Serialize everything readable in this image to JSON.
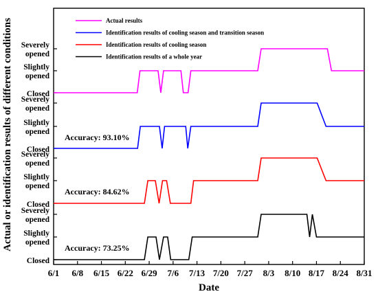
{
  "chart_data": {
    "type": "line",
    "xlabel": "Date",
    "ylabel": "Actual or identification results of different conditions",
    "x_ticks": [
      "6/1",
      "6/8",
      "6/15",
      "6/22",
      "6/29",
      "7/6",
      "7/13",
      "7/20",
      "7/27",
      "8/3",
      "8/10",
      "8/17",
      "8/24",
      "8/31"
    ],
    "x_range": [
      0,
      91
    ],
    "y_levels": [
      "Closed",
      "Slightly opened",
      "Severely opened"
    ],
    "y_level_labels": [
      {
        "line1": "Closed",
        "line2": ""
      },
      {
        "line1": "Slightly",
        "line2": "opened"
      },
      {
        "line1": "Severely",
        "line2": "opened"
      }
    ],
    "grid": false,
    "legend_position": "top-left",
    "series": [
      {
        "name": "Actual  results",
        "color": "#ff00ff",
        "accuracy": "",
        "points": [
          [
            0,
            0
          ],
          [
            24.5,
            0
          ],
          [
            25.3,
            1
          ],
          [
            30.6,
            1
          ],
          [
            31.4,
            0
          ],
          [
            32.2,
            1
          ],
          [
            37.3,
            1
          ],
          [
            38,
            0
          ],
          [
            39.4,
            0
          ],
          [
            40.2,
            1
          ],
          [
            59.8,
            1
          ],
          [
            60.8,
            2
          ],
          [
            80.2,
            2
          ],
          [
            81.4,
            1
          ],
          [
            91,
            1
          ]
        ]
      },
      {
        "name": "Identification results of cooling season and transition season",
        "color": "#0000ff",
        "accuracy": "Accuracy: 93.10%",
        "points": [
          [
            0,
            0
          ],
          [
            24.6,
            0
          ],
          [
            25.4,
            1
          ],
          [
            31,
            1
          ],
          [
            31.8,
            0
          ],
          [
            32.5,
            1
          ],
          [
            38.7,
            1
          ],
          [
            39.3,
            0
          ],
          [
            40.2,
            1
          ],
          [
            59.8,
            1
          ],
          [
            60.8,
            2
          ],
          [
            77.2,
            2
          ],
          [
            79.8,
            1
          ],
          [
            91,
            1
          ]
        ]
      },
      {
        "name": "Identification results  of cooling season",
        "color": "#ff0000",
        "accuracy": "Accuracy: 84.62%",
        "points": [
          [
            0,
            0
          ],
          [
            26.6,
            0
          ],
          [
            27.6,
            1
          ],
          [
            29.8,
            1
          ],
          [
            30.9,
            0
          ],
          [
            31.9,
            1
          ],
          [
            33.1,
            1
          ],
          [
            34.2,
            0
          ],
          [
            40.2,
            0
          ],
          [
            41,
            1
          ],
          [
            59.8,
            1
          ],
          [
            60.8,
            2
          ],
          [
            77.2,
            2
          ],
          [
            79.8,
            1
          ],
          [
            91,
            1
          ]
        ]
      },
      {
        "name": "Identification results  of a whole year",
        "color": "#000000",
        "accuracy": "Accuracy: 73.25%",
        "points": [
          [
            0,
            0
          ],
          [
            26.6,
            0
          ],
          [
            27.6,
            1
          ],
          [
            30,
            1
          ],
          [
            31,
            0
          ],
          [
            32.2,
            1
          ],
          [
            33.4,
            1
          ],
          [
            34.3,
            0
          ],
          [
            39.6,
            0
          ],
          [
            40.6,
            1
          ],
          [
            59.8,
            1
          ],
          [
            60.8,
            2
          ],
          [
            74.2,
            2
          ],
          [
            75,
            1
          ],
          [
            75.8,
            2
          ],
          [
            77,
            1
          ],
          [
            91,
            1
          ]
        ]
      }
    ]
  }
}
